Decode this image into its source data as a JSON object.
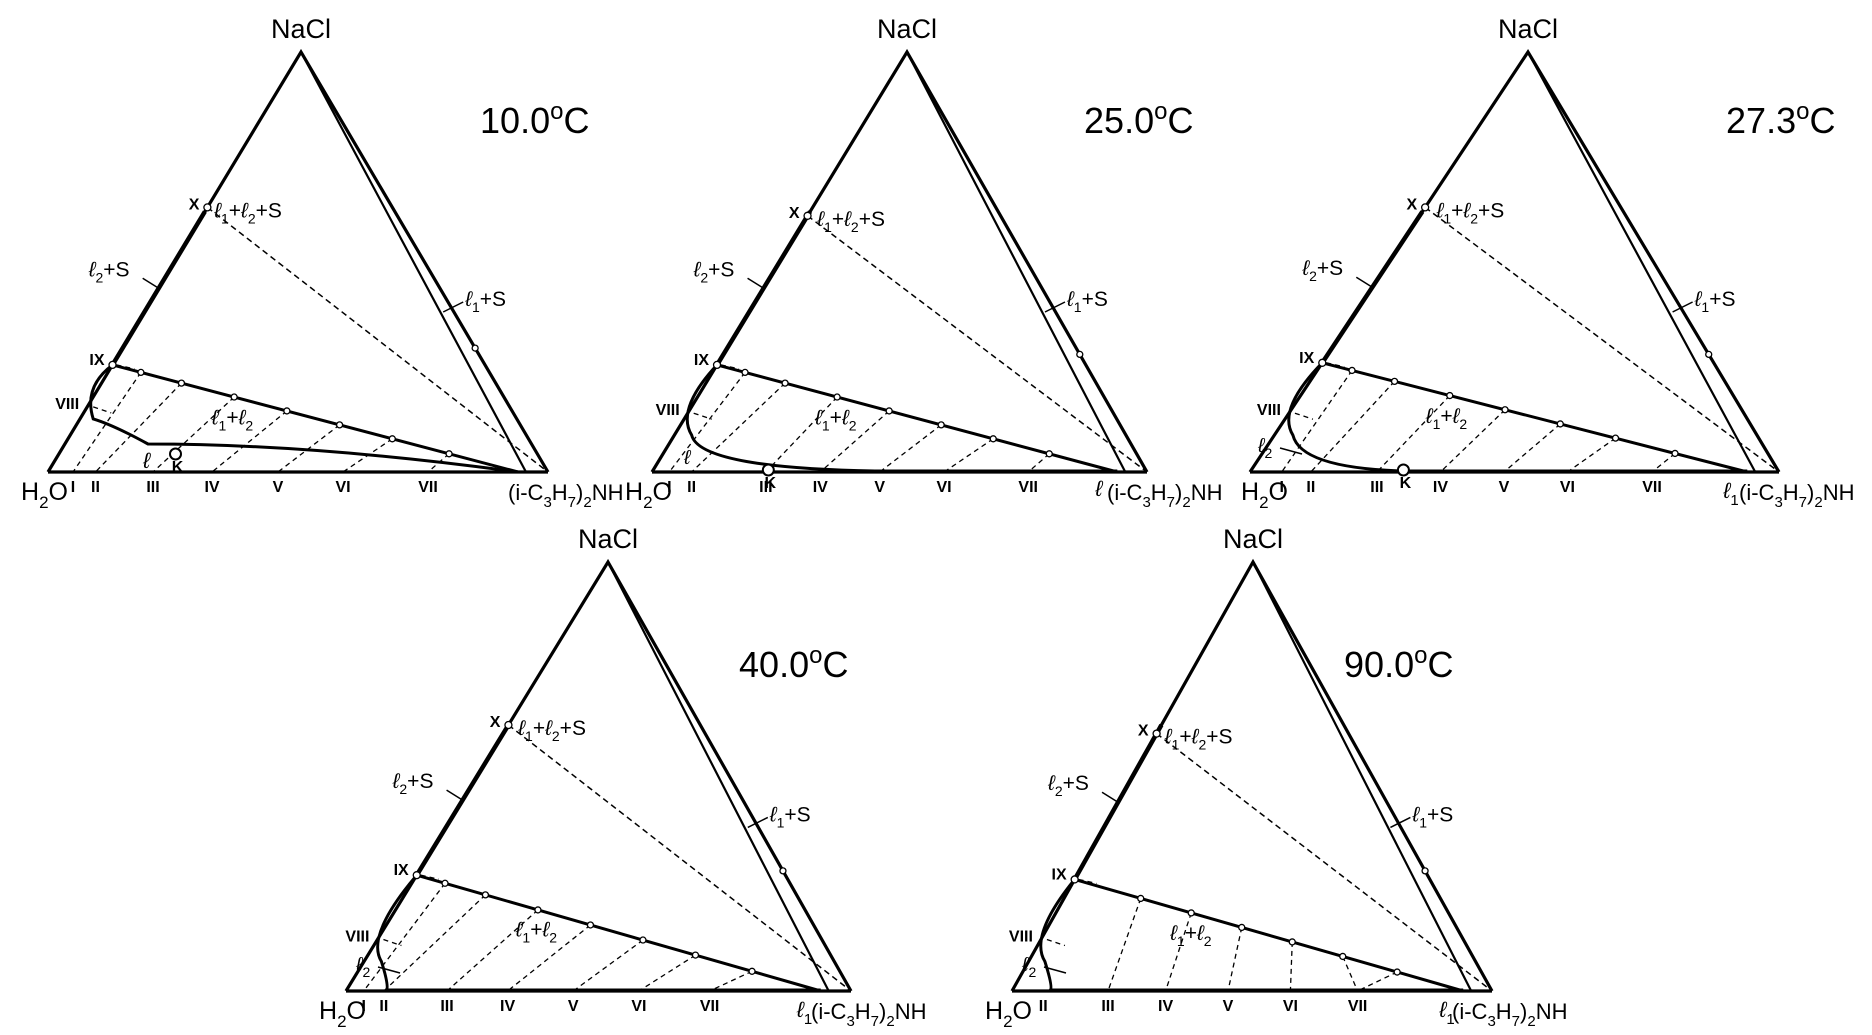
{
  "diagrams": [
    {
      "temperature": "10.0°C",
      "components": {
        "top": "NaCl",
        "left": "H2O",
        "right": "(i-C3H7)2NH"
      },
      "regions": {
        "three_phase": "ℓ1+ℓ2+S",
        "left_two_phase": "ℓ2+S",
        "right_two_phase": "ℓ1+S",
        "two_liquid": "ℓ1+ℓ2",
        "one_liquid": "ℓ"
      },
      "bottom_left_label": "",
      "critical_point": "K",
      "section_labels": [
        "I",
        "II",
        "III",
        "IV",
        "V",
        "VI",
        "VII",
        "VIII",
        "IX",
        "X"
      ]
    },
    {
      "temperature": "25.0°C",
      "components": {
        "top": "NaCl",
        "left": "H2O",
        "right": "(i-C3H7)2NH"
      },
      "regions": {
        "three_phase": "ℓ1+ℓ2+S",
        "left_two_phase": "ℓ2+S",
        "right_two_phase": "ℓ1+S",
        "two_liquid": "ℓ1+ℓ2",
        "one_liquid": "ℓ"
      },
      "bottom_left_label": "",
      "critical_point": "K",
      "section_labels": [
        "I",
        "II",
        "III",
        "IV",
        "V",
        "VI",
        "VII",
        "VIII",
        "IX",
        "X"
      ]
    },
    {
      "temperature": "27.3°C",
      "components": {
        "top": "NaCl",
        "left": "H2O",
        "right": "(i-C3H7)2NH"
      },
      "regions": {
        "three_phase": "ℓ1+ℓ2+S",
        "left_two_phase": "ℓ2+S",
        "right_two_phase": "ℓ1+S",
        "two_liquid": "ℓ1+ℓ2",
        "one_liquid": "ℓ1"
      },
      "bottom_left_label": "ℓ2",
      "critical_point": "K",
      "section_labels": [
        "I",
        "II",
        "III",
        "IV",
        "V",
        "VI",
        "VII",
        "VIII",
        "IX",
        "X"
      ]
    },
    {
      "temperature": "40.0°C",
      "components": {
        "top": "NaCl",
        "left": "H2O",
        "right": "(i-C3H7)2NH"
      },
      "regions": {
        "three_phase": "ℓ1+ℓ2+S",
        "left_two_phase": "ℓ2+S",
        "right_two_phase": "ℓ1+S",
        "two_liquid": "ℓ1+ℓ2",
        "one_liquid": "ℓ1"
      },
      "bottom_left_label": "ℓ2",
      "critical_point": "",
      "section_labels": [
        "I",
        "II",
        "III",
        "IV",
        "V",
        "VI",
        "VII",
        "VIII",
        "IX",
        "X"
      ]
    },
    {
      "temperature": "90.0°C",
      "components": {
        "top": "NaCl",
        "left": "H2O",
        "right": "(i-C3H7)2NH"
      },
      "regions": {
        "three_phase": "ℓ1+ℓ2+S",
        "left_two_phase": "ℓ2+S",
        "right_two_phase": "ℓ1+S",
        "two_liquid": "ℓ1+ℓ2",
        "one_liquid": "ℓ1"
      },
      "bottom_left_label": "ℓ2",
      "critical_point": "",
      "section_labels": [
        "II",
        "III",
        "IV",
        "V",
        "VI",
        "VII",
        "VIII",
        "IX",
        "X"
      ]
    }
  ],
  "colors": {
    "line": "#000000",
    "background": "#ffffff",
    "marker_fill": "#ffffff"
  }
}
